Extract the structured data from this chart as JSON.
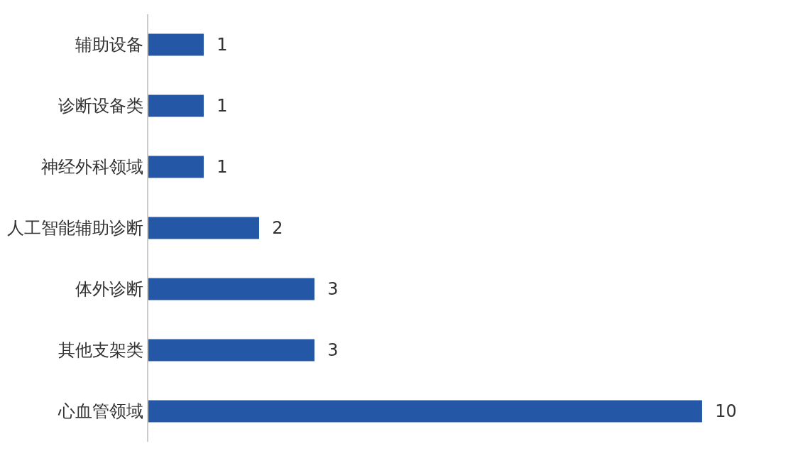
{
  "chart_data": {
    "type": "bar",
    "orientation": "horizontal",
    "categories": [
      "辅助设备",
      "诊断设备类",
      "神经外科领域",
      "人工智能辅助诊断",
      "体外诊断",
      "其他支架类",
      "心血管领域"
    ],
    "values": [
      1,
      1,
      1,
      2,
      3,
      3,
      10
    ],
    "color": "#2458a6",
    "data_labels": true,
    "tick_labels": "y"
  }
}
